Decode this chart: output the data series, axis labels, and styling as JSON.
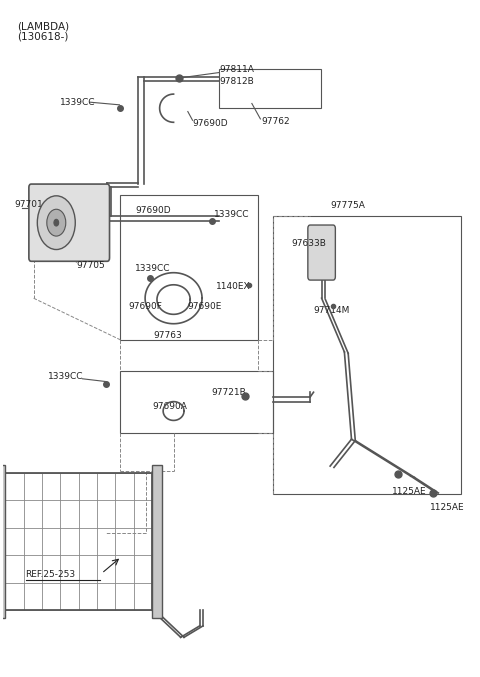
{
  "title_line1": "(LAMBDA)",
  "title_line2": "(130618-)",
  "bg_color": "#ffffff",
  "line_color": "#555555",
  "text_color": "#222222",
  "ref_text": "REF.25-253",
  "figsize": [
    4.8,
    6.77
  ],
  "dpi": 100,
  "fs_label": 6.5,
  "fs_title": 7.5,
  "lw_main": 1.2,
  "lw_thin": 0.8,
  "lw_dashed": 0.7
}
